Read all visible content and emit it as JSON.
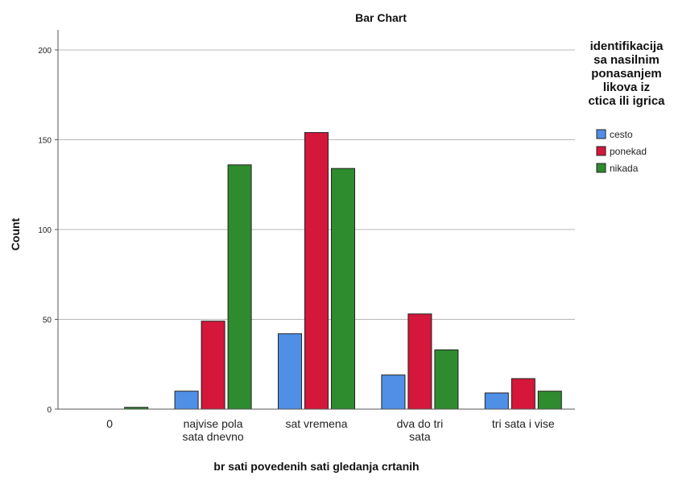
{
  "chart_data": {
    "type": "bar",
    "title": "Bar Chart",
    "xlabel": "br sati povedenih sati gledanja crtanih",
    "ylabel": "Count",
    "ylim": [
      0,
      200
    ],
    "yticks": [
      "0",
      "50",
      "100",
      "150",
      "200"
    ],
    "grid": true,
    "legend_position": "right",
    "legend_title": [
      "identifikacija",
      "sa nasilnim",
      "ponasanjem",
      "likova iz",
      "ctica ili igrica"
    ],
    "categories": [
      [
        "0"
      ],
      [
        "najvise pola",
        "sata dnevno"
      ],
      [
        "sat vremena"
      ],
      [
        "dva do tri",
        "sata"
      ],
      [
        "tri sata i vise"
      ]
    ],
    "series": [
      {
        "name": "cesto",
        "color": "#4f8fe6",
        "values": [
          0,
          10,
          42,
          19,
          9
        ]
      },
      {
        "name": "ponekad",
        "color": "#d4173a",
        "values": [
          0,
          49,
          154,
          53,
          17
        ]
      },
      {
        "name": "nikada",
        "color": "#2e8b2e",
        "values": [
          1,
          136,
          134,
          33,
          10
        ]
      }
    ]
  }
}
